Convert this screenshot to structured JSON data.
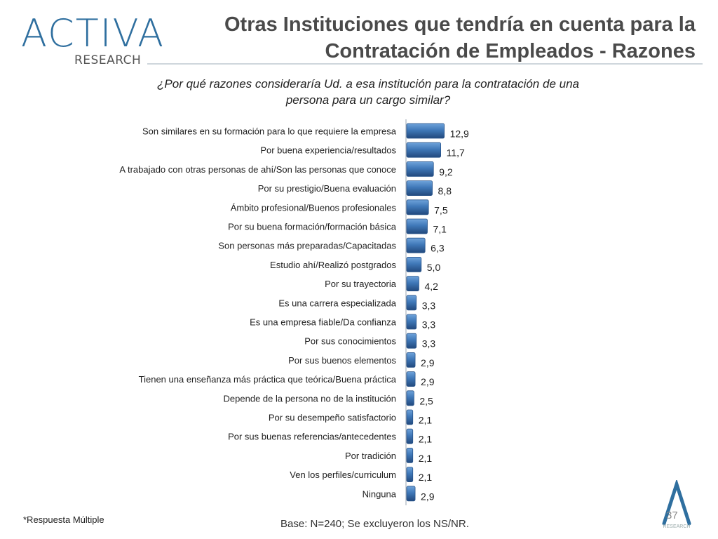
{
  "logo": {
    "main": "ACTIVA",
    "sub": "RESEARCH",
    "small_sub": "RESEARCH"
  },
  "title": "Otras Instituciones que tendría en cuenta para la Contratación de Empleados - Razones",
  "question": "¿Por qué razones consideraría Ud. a esa institución para la contratación de una persona para un cargo similar?",
  "footnote": "*Respuesta Múltiple",
  "base_note": "Base: N=240; Se excluyeron los NS/NR.",
  "page_number": "37",
  "colors": {
    "bar": "#3f78b8",
    "bar_dark": "#27538a",
    "title": "#4a4a4a",
    "logo": "#2f6f9f"
  },
  "chart_data": {
    "type": "bar",
    "orientation": "horizontal",
    "categories": [
      "Son similares en su formación para lo que requiere la empresa",
      "Por buena experiencia/resultados",
      "A trabajado con otras personas de ahí/Son las personas que conoce",
      "Por su prestigio/Buena evaluación",
      "Ámbito profesional/Buenos profesionales",
      "Por su buena formación/formación básica",
      "Son personas más preparadas/Capacitadas",
      "Estudio ahí/Realizó postgrados",
      "Por su trayectoria",
      "Es una carrera especializada",
      "Es una empresa fiable/Da confianza",
      "Por sus conocimientos",
      "Por sus buenos elementos",
      "Tienen una enseñanza más práctica que teórica/Buena práctica",
      "Depende de la persona no de la institución",
      "Por su desempeño satisfactorio",
      "Por sus buenas referencias/antecedentes",
      "Por tradición",
      "Ven los perfiles/curriculum",
      "Ninguna"
    ],
    "values": [
      12.9,
      11.7,
      9.2,
      8.8,
      7.5,
      7.1,
      6.3,
      5.0,
      4.2,
      3.3,
      3.3,
      3.3,
      2.9,
      2.9,
      2.5,
      2.1,
      2.1,
      2.1,
      2.1,
      2.9
    ],
    "value_labels": [
      "12,9",
      "11,7",
      "9,2",
      "8,8",
      "7,5",
      "7,1",
      "6,3",
      "5,0",
      "4,2",
      "3,3",
      "3,3",
      "3,3",
      "2,9",
      "2,9",
      "2,5",
      "2,1",
      "2,1",
      "2,1",
      "2,1",
      "2,9"
    ],
    "xlim": [
      0,
      13
    ],
    "grid": false,
    "legend": "none"
  }
}
